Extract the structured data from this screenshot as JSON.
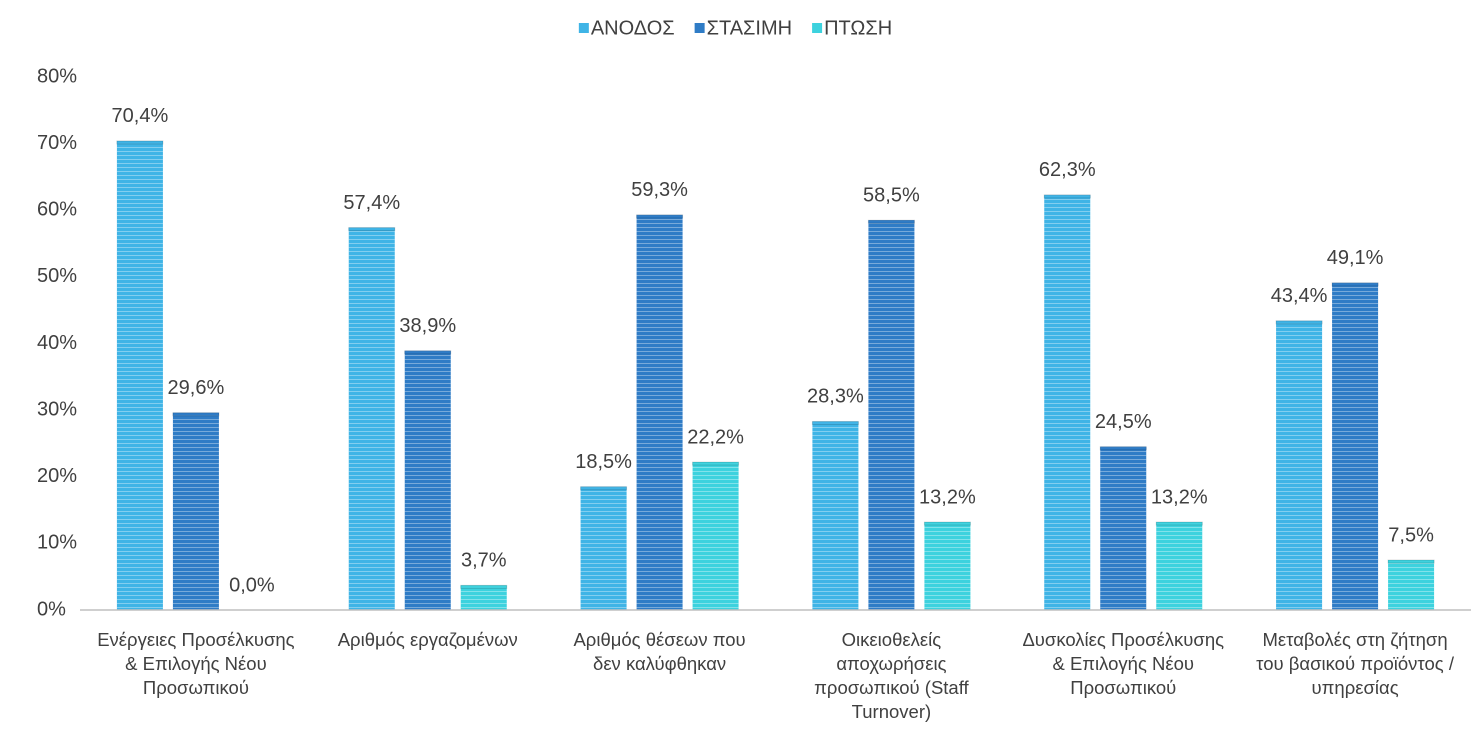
{
  "chart_data": {
    "type": "bar",
    "categories": [
      "Ενέργειες Προσέλκυσης & Επιλογής Νέου Προσωπικού",
      "Αριθμός εργαζομένων",
      "Αριθμός θέσεων που δεν καλύφθηκαν",
      "Οικειοθελείς αποχωρήσεις προσωπικού (Staff Turnover)",
      "Δυσκολίες Προσέλκυσης & Επιλογής Νέου Προσωπικού",
      "Μεταβολές στη ζήτηση του βασικού προϊόντος / υπηρεσίας"
    ],
    "series": [
      {
        "name": "ΑΝΟΔΟΣ",
        "color": "#3fb4e6",
        "values": [
          70.4,
          57.4,
          18.5,
          28.3,
          62.3,
          43.4
        ],
        "value_labels": [
          "70,4%",
          "57,4%",
          "18,5%",
          "28,3%",
          "62,3%",
          "43,4%"
        ]
      },
      {
        "name": "ΣΤΑΣΙΜΗ",
        "color": "#2f7cc6",
        "values": [
          29.6,
          38.9,
          59.3,
          58.5,
          24.5,
          49.1
        ],
        "value_labels": [
          "29,6%",
          "38,9%",
          "59,3%",
          "58,5%",
          "24,5%",
          "49,1%"
        ]
      },
      {
        "name": "ΠΤΩΣΗ",
        "color": "#3dd2de",
        "values": [
          0.0,
          3.7,
          22.2,
          13.2,
          13.2,
          7.5
        ],
        "value_labels": [
          "0,0%",
          "3,7%",
          "22,2%",
          "13,2%",
          "13,2%",
          "7,5%"
        ]
      }
    ],
    "ylim": [
      0,
      80
    ],
    "yticks": [
      {
        "value": 0,
        "label": "0%"
      },
      {
        "value": 10,
        "label": "10%"
      },
      {
        "value": 20,
        "label": "20%"
      },
      {
        "value": 30,
        "label": "30%"
      },
      {
        "value": 40,
        "label": "40%"
      },
      {
        "value": 50,
        "label": "50%"
      },
      {
        "value": 60,
        "label": "60%"
      },
      {
        "value": 70,
        "label": "70%"
      },
      {
        "value": 80,
        "label": "80%"
      }
    ],
    "legend": "top"
  }
}
